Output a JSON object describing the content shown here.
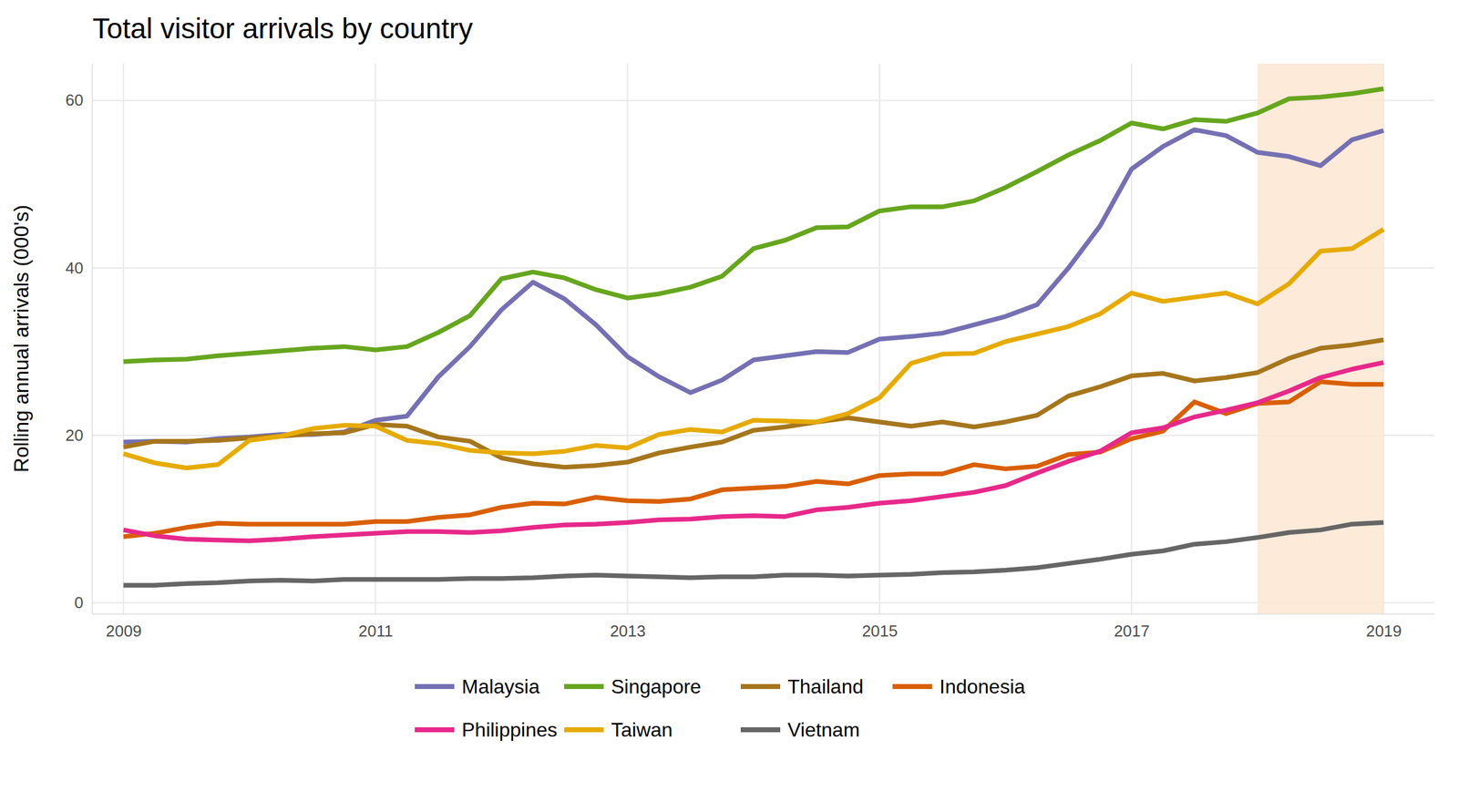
{
  "chart_data": {
    "type": "line",
    "title": "Total visitor arrivals by country",
    "y_label": "Rolling annual arrivals (000's)",
    "x": [
      2009,
      2009.25,
      2009.5,
      2009.75,
      2010,
      2010.25,
      2010.5,
      2010.75,
      2011,
      2011.25,
      2011.5,
      2011.75,
      2012,
      2012.25,
      2012.5,
      2012.75,
      2013,
      2013.25,
      2013.5,
      2013.75,
      2014,
      2014.25,
      2014.5,
      2014.75,
      2015,
      2015.25,
      2015.5,
      2015.75,
      2016,
      2016.25,
      2016.5,
      2016.75,
      2017,
      2017.25,
      2017.5,
      2017.75,
      2018,
      2018.25,
      2018.5,
      2018.75,
      2019
    ],
    "series": [
      {
        "name": "Malaysia",
        "color": "#7570b3",
        "values": [
          19.2,
          19.3,
          19.2,
          19.6,
          19.8,
          20.1,
          20.1,
          20.4,
          21.8,
          22.3,
          27.0,
          30.6,
          35.0,
          38.3,
          36.3,
          33.2,
          29.4,
          27.0,
          25.1,
          26.6,
          29.0,
          29.5,
          30.0,
          29.9,
          31.5,
          31.8,
          32.2,
          33.2,
          34.2,
          35.6,
          40.0,
          45.0,
          51.8,
          54.5,
          56.5,
          55.8,
          53.8,
          53.3,
          52.2,
          55.3,
          56.4
        ]
      },
      {
        "name": "Singapore",
        "color": "#66a61e",
        "values": [
          28.8,
          29.0,
          29.1,
          29.5,
          29.8,
          30.1,
          30.4,
          30.6,
          30.2,
          30.6,
          32.3,
          34.3,
          38.7,
          39.5,
          38.8,
          37.4,
          36.4,
          36.9,
          37.7,
          39.0,
          42.3,
          43.3,
          44.8,
          44.9,
          46.8,
          47.3,
          47.3,
          48.0,
          49.6,
          51.5,
          53.5,
          55.2,
          57.3,
          56.6,
          57.7,
          57.5,
          58.5,
          60.2,
          60.4,
          60.8,
          61.4
        ]
      },
      {
        "name": "Thailand",
        "color": "#a6761d",
        "values": [
          18.6,
          19.3,
          19.3,
          19.4,
          19.7,
          19.9,
          20.2,
          20.3,
          21.3,
          21.1,
          19.8,
          19.3,
          17.3,
          16.6,
          16.2,
          16.4,
          16.8,
          17.9,
          18.6,
          19.2,
          20.6,
          21.0,
          21.6,
          22.1,
          21.6,
          21.1,
          21.6,
          21.0,
          21.6,
          22.4,
          24.7,
          25.8,
          27.1,
          27.4,
          26.5,
          26.9,
          27.5,
          29.2,
          30.4,
          30.8,
          31.4
        ]
      },
      {
        "name": "Indonesia",
        "color": "#d95f02",
        "values": [
          7.9,
          8.3,
          9.0,
          9.5,
          9.4,
          9.4,
          9.4,
          9.4,
          9.7,
          9.7,
          10.2,
          10.5,
          11.4,
          11.9,
          11.8,
          12.6,
          12.2,
          12.1,
          12.4,
          13.5,
          13.7,
          13.9,
          14.5,
          14.2,
          15.2,
          15.4,
          15.4,
          16.5,
          16.0,
          16.3,
          17.7,
          18.0,
          19.6,
          20.5,
          24.0,
          22.6,
          23.8,
          24.0,
          26.4,
          26.1,
          26.1
        ]
      },
      {
        "name": "Philippines",
        "color": "#e7298a",
        "values": [
          8.7,
          8.0,
          7.6,
          7.5,
          7.4,
          7.6,
          7.9,
          8.1,
          8.3,
          8.5,
          8.5,
          8.4,
          8.6,
          9.0,
          9.3,
          9.4,
          9.6,
          9.9,
          10.0,
          10.3,
          10.4,
          10.3,
          11.1,
          11.4,
          11.9,
          12.2,
          12.7,
          13.2,
          14.0,
          15.5,
          16.9,
          18.1,
          20.3,
          20.9,
          22.2,
          23.0,
          23.9,
          25.3,
          26.9,
          27.9,
          28.7
        ]
      },
      {
        "name": "Taiwan",
        "color": "#e6ab02",
        "values": [
          17.8,
          16.7,
          16.1,
          16.5,
          19.4,
          19.9,
          20.8,
          21.2,
          21.1,
          19.4,
          19.0,
          18.2,
          17.9,
          17.8,
          18.1,
          18.8,
          18.5,
          20.1,
          20.7,
          20.4,
          21.8,
          21.7,
          21.6,
          22.6,
          24.5,
          28.6,
          29.7,
          29.8,
          31.2,
          32.1,
          33.0,
          34.5,
          37.0,
          36.0,
          36.5,
          37.0,
          35.7,
          38.1,
          42.0,
          42.3,
          44.6
        ]
      },
      {
        "name": "Vietnam",
        "color": "#666666",
        "values": [
          2.1,
          2.1,
          2.3,
          2.4,
          2.6,
          2.7,
          2.6,
          2.8,
          2.8,
          2.8,
          2.8,
          2.9,
          2.9,
          3.0,
          3.2,
          3.3,
          3.2,
          3.1,
          3.0,
          3.1,
          3.1,
          3.3,
          3.3,
          3.2,
          3.3,
          3.4,
          3.6,
          3.7,
          3.9,
          4.2,
          4.7,
          5.2,
          5.8,
          6.2,
          7.0,
          7.3,
          7.8,
          8.4,
          8.7,
          9.4,
          9.6
        ]
      }
    ],
    "highlight_range": [
      2018,
      2019
    ],
    "xlim": [
      2008.75,
      2019.4
    ],
    "xticks": [
      2009,
      2011,
      2013,
      2015,
      2017,
      2019
    ],
    "ylim": [
      -1.3,
      64.4
    ],
    "yticks": [
      0,
      20,
      40,
      60
    ],
    "grid": true,
    "legend": "bottom"
  }
}
